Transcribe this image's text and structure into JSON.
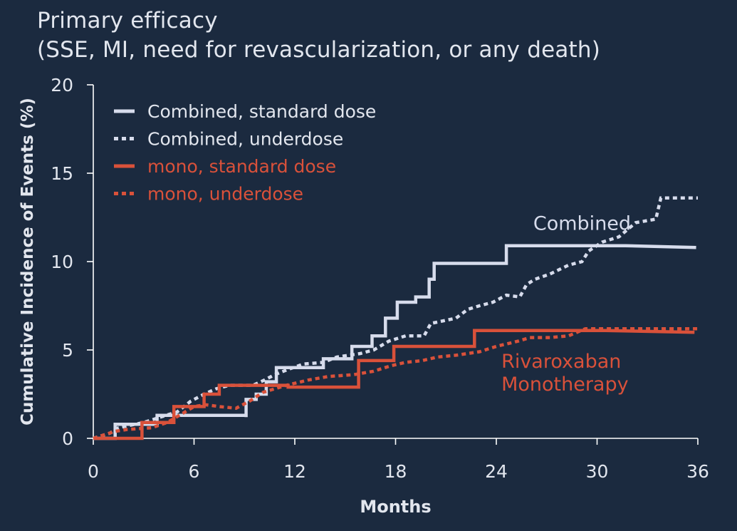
{
  "colors": {
    "background": "#1b2a3f",
    "combined": "#d7dcec",
    "mono": "#d9513a",
    "axis": "#ffffff",
    "text": "#e2e6ee"
  },
  "chart_data": {
    "type": "line",
    "step": true,
    "title": "Primary efficacy",
    "subtitle": "(SSE, MI, need for revascularization, or any death)",
    "xlabel": "Months",
    "ylabel": "Cumulative Incidence of Events (%)",
    "xlim": [
      0,
      36
    ],
    "ylim": [
      0,
      20
    ],
    "xticks": [
      0,
      6,
      12,
      18,
      24,
      30,
      36
    ],
    "yticks": [
      0,
      5,
      10,
      15,
      20
    ],
    "grid": false,
    "legend_position": "top-left",
    "annotations": [
      {
        "text": "Combined",
        "x": 26.2,
        "y": 11.8,
        "color": "combined"
      },
      {
        "text": "Rivaroxaban",
        "x": 24.3,
        "y": 4.0,
        "color": "mono"
      },
      {
        "text": "Monotherapy",
        "x": 24.3,
        "y": 2.7,
        "color": "mono"
      }
    ],
    "series": [
      {
        "name": "Combined, standard dose",
        "color": "combined",
        "dash": "solid",
        "points": [
          [
            0,
            0
          ],
          [
            1.3,
            0
          ],
          [
            1.3,
            0.8
          ],
          [
            3.8,
            0.8
          ],
          [
            3.8,
            1.3
          ],
          [
            9.1,
            1.3
          ],
          [
            9.1,
            1.2
          ],
          [
            9.1,
            2.2
          ],
          [
            9.7,
            2.2
          ],
          [
            9.7,
            2.5
          ],
          [
            10.3,
            2.5
          ],
          [
            10.3,
            3.2
          ],
          [
            10.9,
            3.2
          ],
          [
            10.9,
            4.0
          ],
          [
            13.7,
            4.0
          ],
          [
            13.7,
            4.5
          ],
          [
            15.4,
            4.5
          ],
          [
            15.4,
            5.2
          ],
          [
            16.6,
            5.2
          ],
          [
            16.6,
            5.8
          ],
          [
            17.4,
            5.8
          ],
          [
            17.4,
            6.8
          ],
          [
            18.1,
            6.8
          ],
          [
            18.1,
            7.7
          ],
          [
            19.2,
            7.7
          ],
          [
            19.2,
            8.0
          ],
          [
            20.0,
            8.0
          ],
          [
            20.0,
            9.0
          ],
          [
            20.3,
            9.0
          ],
          [
            20.3,
            9.9
          ],
          [
            24.6,
            9.9
          ],
          [
            24.6,
            10.9
          ],
          [
            31.7,
            10.9
          ],
          [
            35.9,
            10.8
          ]
        ]
      },
      {
        "name": "Combined, underdose",
        "color": "combined",
        "dash": "dotted",
        "points": [
          [
            0,
            0
          ],
          [
            1.0,
            0.3
          ],
          [
            1.5,
            0.6
          ],
          [
            3.0,
            0.9
          ],
          [
            4.0,
            1.2
          ],
          [
            5.0,
            1.5
          ],
          [
            5.8,
            2.1
          ],
          [
            6.6,
            2.5
          ],
          [
            7.3,
            2.8
          ],
          [
            8.1,
            3.0
          ],
          [
            9.5,
            3.0
          ],
          [
            10.2,
            3.3
          ],
          [
            10.8,
            3.6
          ],
          [
            11.6,
            3.9
          ],
          [
            12.5,
            4.2
          ],
          [
            13.7,
            4.3
          ],
          [
            14.5,
            4.6
          ],
          [
            15.9,
            4.8
          ],
          [
            16.7,
            5.0
          ],
          [
            17.6,
            5.5
          ],
          [
            18.6,
            5.8
          ],
          [
            19.7,
            5.8
          ],
          [
            20.1,
            6.5
          ],
          [
            21.6,
            6.8
          ],
          [
            22.3,
            7.3
          ],
          [
            23.0,
            7.5
          ],
          [
            23.8,
            7.7
          ],
          [
            24.6,
            8.1
          ],
          [
            25.4,
            8.0
          ],
          [
            25.8,
            8.7
          ],
          [
            26.3,
            9.0
          ],
          [
            27.2,
            9.3
          ],
          [
            28.3,
            9.8
          ],
          [
            29.1,
            10.0
          ],
          [
            29.5,
            10.6
          ],
          [
            30.3,
            11.1
          ],
          [
            31.3,
            11.4
          ],
          [
            32.3,
            12.2
          ],
          [
            33.5,
            12.4
          ],
          [
            33.8,
            13.6
          ],
          [
            36.0,
            13.6
          ]
        ]
      },
      {
        "name": "mono, standard dose",
        "color": "mono",
        "dash": "solid",
        "points": [
          [
            0,
            0
          ],
          [
            2.9,
            0
          ],
          [
            2.9,
            0.9
          ],
          [
            4.8,
            0.9
          ],
          [
            4.8,
            1.8
          ],
          [
            6.6,
            1.8
          ],
          [
            6.6,
            2.5
          ],
          [
            7.5,
            2.5
          ],
          [
            7.5,
            3.0
          ],
          [
            11.6,
            3.0
          ],
          [
            11.6,
            2.9
          ],
          [
            15.8,
            2.9
          ],
          [
            15.8,
            4.4
          ],
          [
            17.9,
            4.4
          ],
          [
            17.9,
            5.2
          ],
          [
            22.7,
            5.2
          ],
          [
            22.7,
            6.1
          ],
          [
            30.5,
            6.1
          ],
          [
            35.8,
            6.0
          ]
        ]
      },
      {
        "name": "mono, underdose",
        "color": "mono",
        "dash": "dotted",
        "points": [
          [
            0,
            0
          ],
          [
            1.3,
            0.4
          ],
          [
            2.0,
            0.5
          ],
          [
            3.5,
            0.6
          ],
          [
            4.4,
            0.9
          ],
          [
            5.3,
            1.4
          ],
          [
            6.0,
            1.8
          ],
          [
            6.7,
            1.9
          ],
          [
            7.5,
            1.8
          ],
          [
            8.5,
            1.7
          ],
          [
            9.3,
            2.1
          ],
          [
            10.1,
            2.6
          ],
          [
            11.5,
            3.0
          ],
          [
            12.8,
            3.3
          ],
          [
            14.0,
            3.5
          ],
          [
            15.5,
            3.6
          ],
          [
            16.7,
            3.8
          ],
          [
            17.7,
            4.1
          ],
          [
            18.6,
            4.3
          ],
          [
            19.6,
            4.4
          ],
          [
            20.5,
            4.6
          ],
          [
            21.6,
            4.7
          ],
          [
            23.0,
            4.9
          ],
          [
            24.0,
            5.2
          ],
          [
            25.3,
            5.5
          ],
          [
            26.0,
            5.7
          ],
          [
            27.2,
            5.7
          ],
          [
            28.3,
            5.8
          ],
          [
            29.3,
            6.2
          ],
          [
            30.2,
            6.2
          ],
          [
            36.0,
            6.2
          ]
        ]
      }
    ]
  }
}
